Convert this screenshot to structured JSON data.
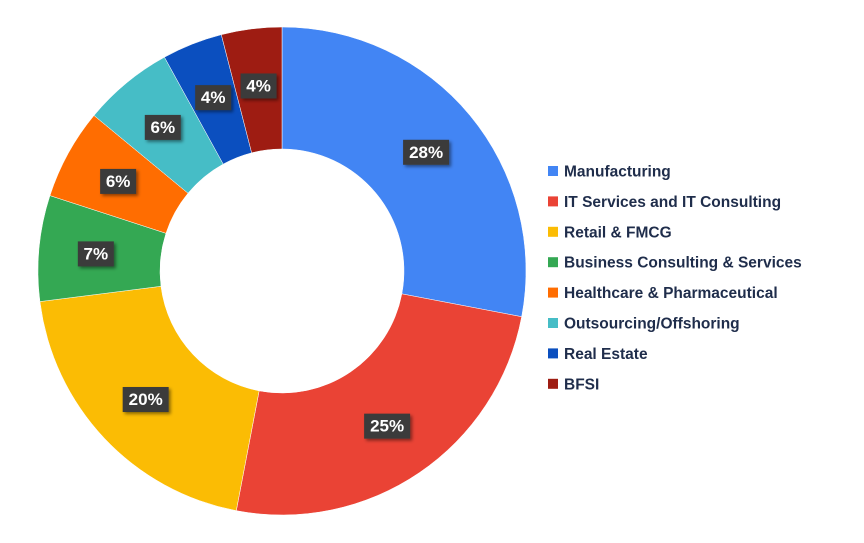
{
  "chart_data": {
    "type": "pie",
    "donut": true,
    "title": "",
    "legend_position": "right",
    "slices": [
      {
        "label": "Manufacturing",
        "value": 28,
        "display": "28%",
        "color": "#4285f4"
      },
      {
        "label": "IT Services and IT Consulting",
        "value": 25,
        "display": "25%",
        "color": "#ea4335"
      },
      {
        "label": "Retail & FMCG",
        "value": 20,
        "display": "20%",
        "color": "#fbbc04"
      },
      {
        "label": "Business Consulting & Services",
        "value": 7,
        "display": "7%",
        "color": "#34a853"
      },
      {
        "label": "Healthcare & Pharmaceutical",
        "value": 6,
        "display": "6%",
        "color": "#ff6d01"
      },
      {
        "label": "Outsourcing/Offshoring",
        "value": 6,
        "display": "6%",
        "color": "#46bdc6"
      },
      {
        "label": "Real Estate",
        "value": 4,
        "display": "4%",
        "color": "#0b4fbf"
      },
      {
        "label": "BFSI",
        "value": 4,
        "display": "4%",
        "color": "#9e1c12"
      }
    ]
  }
}
